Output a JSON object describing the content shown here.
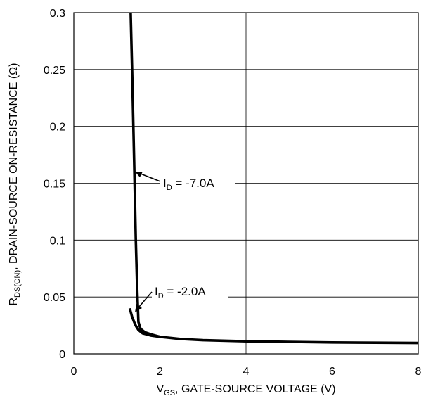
{
  "chart_data": {
    "type": "line",
    "xlabel": {
      "main": "V",
      "sub": "GS",
      "rest": ", GATE-SOURCE VOLTAGE (V)"
    },
    "ylabel": {
      "main": "R",
      "sub": "DS(ON)",
      "rest": ", DRAIN-SOURCE ON-RESISTANCE (Ω)"
    },
    "xlim": [
      0,
      8
    ],
    "ylim": [
      0,
      0.3
    ],
    "xticks": [
      0,
      2,
      4,
      6,
      8
    ],
    "xtick_labels": [
      "0",
      "2",
      "4",
      "6",
      "8"
    ],
    "yticks": [
      0,
      0.05,
      0.1,
      0.15,
      0.2,
      0.25,
      0.3
    ],
    "ytick_labels": [
      "0",
      "0.05",
      "0.1",
      "0.15",
      "0.2",
      "0.25",
      "0.3"
    ],
    "grid": true,
    "series": [
      {
        "name": "I_D = -7.0A",
        "color": "#000000",
        "x": [
          1.32,
          1.36,
          1.4,
          1.44,
          1.47,
          1.5,
          1.55,
          1.65,
          1.8,
          2.0,
          2.5,
          3.0,
          4.0,
          5.0,
          6.0,
          7.0,
          8.0
        ],
        "y": [
          0.3,
          0.24,
          0.17,
          0.1,
          0.06,
          0.028,
          0.022,
          0.019,
          0.017,
          0.015,
          0.013,
          0.012,
          0.011,
          0.0105,
          0.01,
          0.0098,
          0.0095
        ]
      },
      {
        "name": "I_D = -2.0A",
        "color": "#000000",
        "x": [
          1.3,
          1.35,
          1.4,
          1.45,
          1.5,
          1.6,
          1.8,
          2.0
        ],
        "y": [
          0.04,
          0.033,
          0.028,
          0.024,
          0.021,
          0.018,
          0.016,
          0.015
        ]
      }
    ],
    "annotations": [
      {
        "main": "I",
        "sub": "D",
        "rest": " = -7.0A",
        "target_x": 1.45,
        "target_y": 0.16
      },
      {
        "main": "I",
        "sub": "D",
        "rest": " = -2.0A",
        "target_x": 1.4,
        "target_y": 0.035
      }
    ]
  }
}
